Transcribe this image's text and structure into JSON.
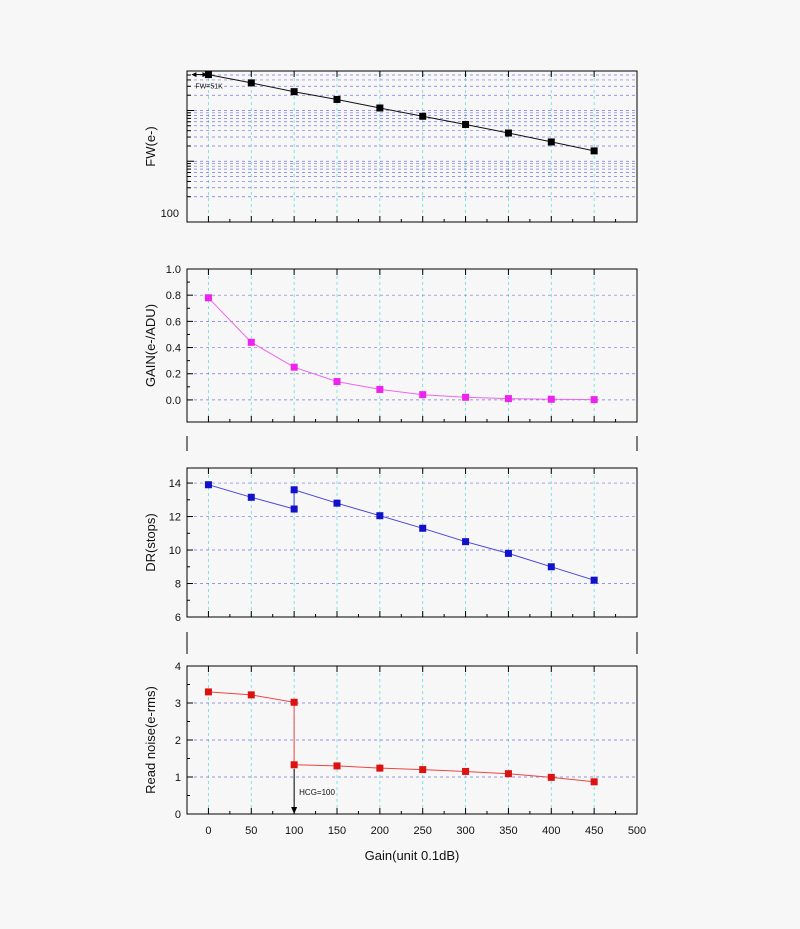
{
  "figure": {
    "xlabel": "Gain(unit 0.1dB)",
    "x_ticks": [
      0,
      50,
      100,
      150,
      200,
      250,
      300,
      350,
      400,
      450,
      500
    ],
    "xlim": [
      -25,
      500
    ]
  },
  "chart_data": [
    {
      "type": "line",
      "ylabel": "FW(e-)",
      "yscale": "log",
      "ylim": [
        100,
        60000
      ],
      "y_tick_labels": [
        {
          "value": 100,
          "label": "100"
        }
      ],
      "grid": true,
      "colors": {
        "line": "#111111",
        "marker": "#000000"
      },
      "series": [
        {
          "x": [
            0,
            50,
            100,
            150,
            200,
            250,
            300,
            350,
            400,
            450
          ],
          "values": [
            51000,
            35000,
            23500,
            16500,
            11200,
            7700,
            5300,
            3600,
            2400,
            1600
          ]
        }
      ],
      "annotations": [
        {
          "text": "FW=51K",
          "x": 0,
          "y": 51000
        }
      ]
    },
    {
      "type": "line",
      "ylabel": "GAIN(e-/ADU)",
      "ylim": [
        -0.1,
        1.0
      ],
      "y_ticks": [
        0.0,
        0.2,
        0.4,
        0.6,
        0.8,
        1.0
      ],
      "y_tick_labels": [
        "0.0",
        "0.2",
        "0.4",
        "0.6",
        "0.8",
        "1.0"
      ],
      "grid": true,
      "colors": {
        "line": "#ee66ee",
        "marker": "#ee22ee"
      },
      "series": [
        {
          "x": [
            0,
            50,
            100,
            150,
            200,
            250,
            300,
            350,
            400,
            450
          ],
          "values": [
            0.78,
            0.44,
            0.25,
            0.14,
            0.08,
            0.04,
            0.02,
            0.01,
            0.005,
            0.002
          ]
        }
      ]
    },
    {
      "type": "line",
      "ylabel": "DR(stops)",
      "ylim": [
        6,
        14.9
      ],
      "y_ticks": [
        6,
        8,
        10,
        12,
        14
      ],
      "y_tick_labels": [
        "6",
        "8",
        "10",
        "12",
        "14"
      ],
      "grid": true,
      "colors": {
        "line": "#4444dd",
        "marker": "#1111cc"
      },
      "series": [
        {
          "x": [
            0,
            50,
            100,
            100,
            150,
            200,
            250,
            300,
            350,
            400,
            450
          ],
          "values": [
            13.9,
            13.15,
            12.45,
            13.6,
            12.8,
            12.05,
            11.3,
            10.5,
            9.8,
            9.0,
            8.2
          ]
        }
      ]
    },
    {
      "type": "line",
      "ylabel": "Read noise(e-rms)",
      "ylim": [
        0,
        4
      ],
      "y_ticks": [
        0,
        1,
        2,
        3,
        4
      ],
      "y_tick_labels": [
        "0",
        "1",
        "2",
        "3",
        "4"
      ],
      "grid": true,
      "colors": {
        "line": "#ee4444",
        "marker": "#dd1111"
      },
      "series": [
        {
          "x": [
            0,
            50,
            100,
            100,
            150,
            200,
            250,
            300,
            350,
            400,
            450
          ],
          "values": [
            3.3,
            3.22,
            3.02,
            1.33,
            1.3,
            1.24,
            1.2,
            1.15,
            1.09,
            0.99,
            0.87
          ]
        }
      ],
      "annotations": [
        {
          "text": "HCG=100",
          "x": 100,
          "y": 0
        }
      ]
    }
  ]
}
